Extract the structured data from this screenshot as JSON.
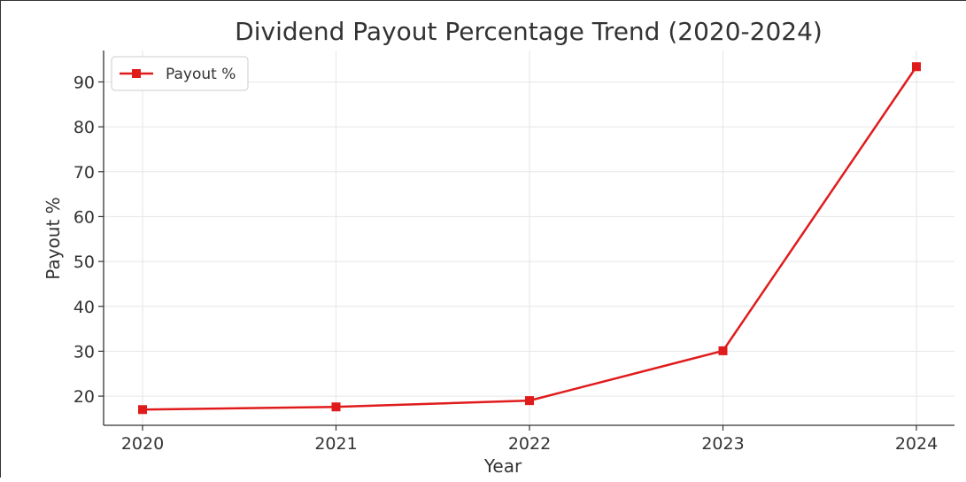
{
  "chart_data": {
    "type": "line",
    "title": "Dividend Payout Percentage Trend (2020-2024)",
    "xlabel": "Year",
    "ylabel": "Payout %",
    "x": [
      "2020",
      "2021",
      "2022",
      "2023",
      "2024"
    ],
    "y_ticks": [
      "20",
      "30",
      "40",
      "50",
      "60",
      "70",
      "80",
      "90"
    ],
    "ylim": [
      13.5,
      97
    ],
    "grid": true,
    "legend_position": "top-left",
    "series": [
      {
        "name": "Payout %",
        "color": "#e01b1b",
        "marker": "square",
        "values": [
          17.0,
          17.6,
          19.0,
          30.1,
          93.4
        ]
      }
    ]
  }
}
